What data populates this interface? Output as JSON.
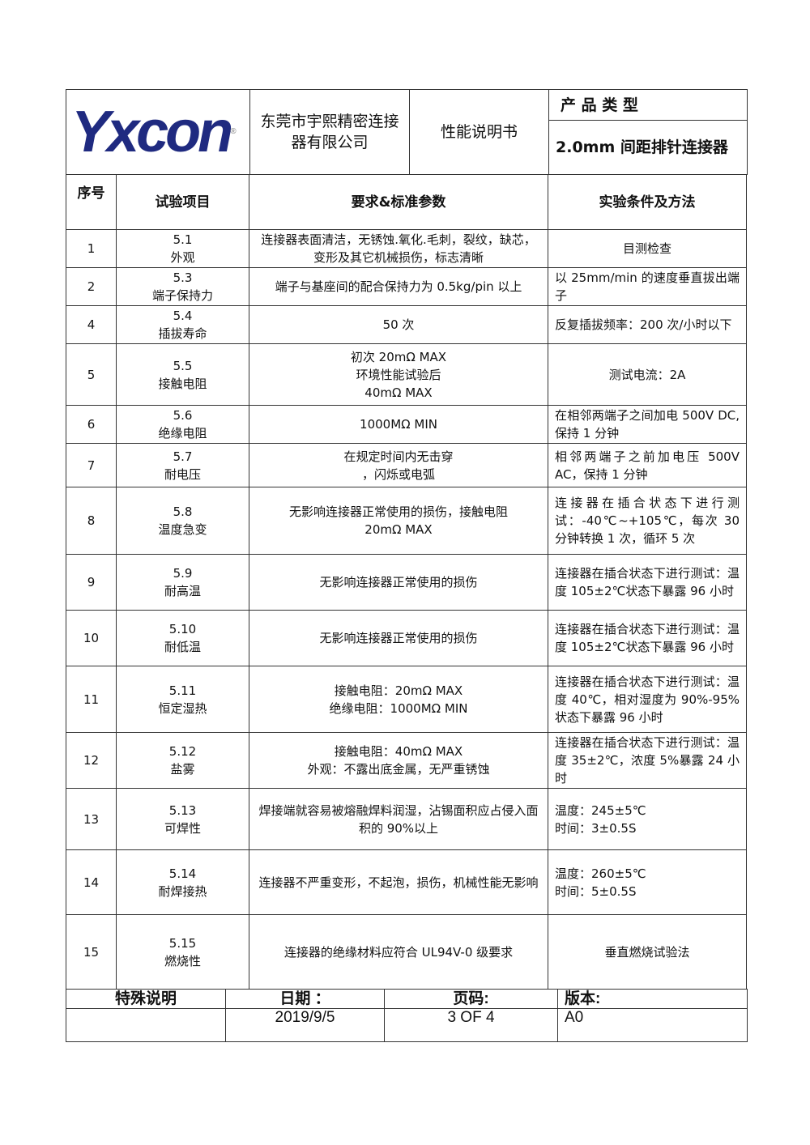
{
  "header": {
    "logo_text": "Yxcon",
    "company": "东莞市宇熙精密连接器有限公司",
    "doc_title": "性能说明书",
    "product_type_label": "产 品 类 型",
    "product_type": "2.0mm 间距排针连接器"
  },
  "columns": [
    "序号",
    "试验项目",
    "要求&标准参数",
    "实验条件及方法"
  ],
  "rows": [
    {
      "no": "1",
      "code": "5.1",
      "item": "外观",
      "req": "连接器表面清洁，无锈蚀.氧化.毛刺，裂纹，缺芯，变形及其它机械损伤，标志清晰",
      "method": "目测检查"
    },
    {
      "no": "2",
      "code": "5.3",
      "item": "端子保持力",
      "req": "端子与基座间的配合保持力为 0.5kg/pin 以上",
      "method": "以 25mm/min 的速度垂直拔出端子"
    },
    {
      "no": "4",
      "code": "5.4",
      "item": "插拔寿命",
      "req": "50 次",
      "method": "反复插拔频率：200 次/小时以下"
    },
    {
      "no": "5",
      "code": "5.5",
      "item": "接触电阻",
      "req": "初次 20mΩ MAX\n环境性能试验后\n40mΩ MAX",
      "method": "测试电流：2A"
    },
    {
      "no": "6",
      "code": "5.6",
      "item": "绝缘电阻",
      "req": "1000MΩ MIN",
      "method": "在相邻两端子之间加电 500V DC,保持 1 分钟"
    },
    {
      "no": "7",
      "code": "5.7",
      "item": "耐电压",
      "req": "在规定时间内无击穿\n，闪烁或电弧",
      "method": "相邻两端子之前加电压 500V AC，保持 1 分钟"
    },
    {
      "no": "8",
      "code": "5.8",
      "item": "温度急变",
      "req": "无影响连接器正常使用的损伤，接触电阻\n20mΩ MAX",
      "method": "连接器在插合状态下进行测试：-40℃~+105℃，每次 30 分钟转换 1 次，循环 5 次"
    },
    {
      "no": "9",
      "code": "5.9",
      "item": "耐高温",
      "req": "无影响连接器正常使用的损伤",
      "method": "连接器在插合状态下进行测试：温度 105±2℃状态下暴露 96 小时"
    },
    {
      "no": "10",
      "code": "5.10",
      "item": "耐低温",
      "req": "无影响连接器正常使用的损伤",
      "method": "连接器在插合状态下进行测试：温度 105±2℃状态下暴露 96 小时"
    },
    {
      "no": "11",
      "code": "5.11",
      "item": "恒定湿热",
      "req": "接触电阻：20mΩ MAX\n绝缘电阻：1000MΩ MIN",
      "method": "连接器在插合状态下进行测试：温度 40℃，相对湿度为 90%-95%状态下暴露 96 小时"
    },
    {
      "no": "12",
      "code": "5.12",
      "item": "盐雾",
      "req": "接触电阻：40mΩ MAX\n外观：不露出底金属，无严重锈蚀",
      "method": "连接器在插合状态下进行测试：温度 35±2℃，浓度 5%暴露 24 小时"
    },
    {
      "no": "13",
      "code": "5.13",
      "item": "可焊性",
      "req": "焊接端就容易被熔融焊料润湿，沾锡面积应占侵入面积的 90%以上",
      "method": "温度：245±5℃\n时间：3±0.5S"
    },
    {
      "no": "14",
      "code": "5.14",
      "item": "耐焊接热",
      "req": "连接器不严重变形，不起泡，损伤，机械性能无影响",
      "method": "温度：260±5℃\n时间：5±0.5S"
    },
    {
      "no": "15",
      "code": "5.15",
      "item": "燃烧性",
      "req": "连接器的绝缘材料应符合 UL94V-0 级要求",
      "method": "垂直燃烧试验法"
    }
  ],
  "footer": {
    "special_label": "特殊说明",
    "special_value": "",
    "date_label": "日期 ：",
    "date": "2019/9/5",
    "page_label": "页码:",
    "page": "3 OF 4",
    "version_label": "版本:",
    "version": "A0"
  },
  "colors": {
    "logo": "#1f2a80",
    "logo_accent": "#e02020"
  }
}
